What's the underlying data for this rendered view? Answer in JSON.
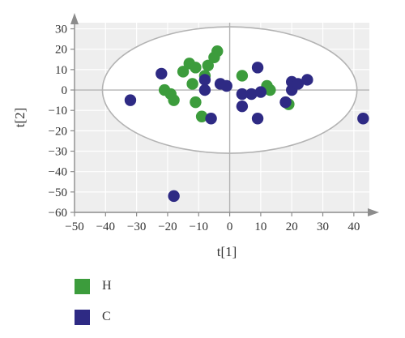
{
  "chart_data": {
    "type": "scatter",
    "xlabel": "t[1]",
    "ylabel": "t[2]",
    "xlim": [
      -50,
      45
    ],
    "ylim": [
      -60,
      33
    ],
    "xticks": [
      -50,
      -40,
      -30,
      -20,
      -10,
      0,
      10,
      20,
      30,
      40
    ],
    "yticks": [
      -60,
      -50,
      -40,
      -30,
      -20,
      -10,
      0,
      10,
      20,
      30
    ],
    "grid": true,
    "legend_position": "bottom-left",
    "ellipse": {
      "center": [
        0,
        0
      ],
      "rx": 41,
      "ry": 31
    },
    "series": [
      {
        "name": "H",
        "color": "#3c9c3c",
        "points": [
          [
            -21,
            0
          ],
          [
            -19,
            -2
          ],
          [
            -18,
            -5
          ],
          [
            -15,
            9
          ],
          [
            -13,
            13
          ],
          [
            -12,
            3
          ],
          [
            -11,
            -6
          ],
          [
            -11,
            11
          ],
          [
            -9,
            -13
          ],
          [
            -8,
            7
          ],
          [
            -7,
            12
          ],
          [
            -5,
            16
          ],
          [
            -4,
            19
          ],
          [
            4,
            7
          ],
          [
            12,
            2
          ],
          [
            13,
            0
          ],
          [
            19,
            -7
          ]
        ]
      },
      {
        "name": "C",
        "color": "#2e2a84",
        "points": [
          [
            -32,
            -5
          ],
          [
            -22,
            8
          ],
          [
            -18,
            -52
          ],
          [
            -8,
            5
          ],
          [
            -8,
            0
          ],
          [
            -6,
            -14
          ],
          [
            -3,
            3
          ],
          [
            -1,
            2
          ],
          [
            4,
            -8
          ],
          [
            4,
            -2
          ],
          [
            7,
            -2
          ],
          [
            9,
            -14
          ],
          [
            9,
            11
          ],
          [
            10,
            -1
          ],
          [
            18,
            -6
          ],
          [
            20,
            0
          ],
          [
            20,
            4
          ],
          [
            22,
            3
          ],
          [
            25,
            5
          ],
          [
            43,
            -14
          ]
        ]
      }
    ]
  }
}
